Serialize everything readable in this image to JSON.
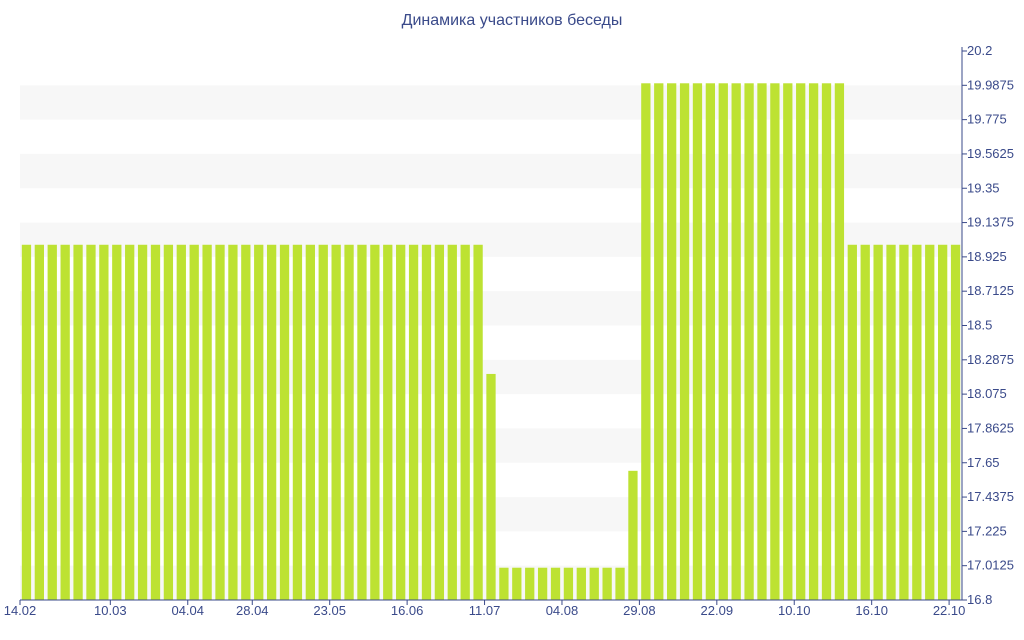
{
  "chart_data": {
    "type": "bar",
    "title": "Динамика участников беседы",
    "xlabel": "",
    "ylabel": "",
    "ylim": [
      16.8,
      20.2
    ],
    "y_ticks": [
      "20.2",
      "19.9875",
      "19.775",
      "19.5625",
      "19.35",
      "19.1375",
      "18.925",
      "18.7125",
      "18.5",
      "18.2875",
      "18.075",
      "17.8625",
      "17.65",
      "17.4375",
      "17.225",
      "17.0125",
      "16.8"
    ],
    "x_tick_labels": [
      {
        "index": 0,
        "label": "14.02"
      },
      {
        "index": 7,
        "label": "10.03"
      },
      {
        "index": 13,
        "label": "04.04"
      },
      {
        "index": 18,
        "label": "28.04"
      },
      {
        "index": 24,
        "label": "23.05"
      },
      {
        "index": 30,
        "label": "16.06"
      },
      {
        "index": 36,
        "label": "11.07"
      },
      {
        "index": 42,
        "label": "04.08"
      },
      {
        "index": 48,
        "label": "29.08"
      },
      {
        "index": 54,
        "label": "22.09"
      },
      {
        "index": 60,
        "label": "10.10"
      },
      {
        "index": 66,
        "label": "16.10"
      },
      {
        "index": 72,
        "label": "22.10"
      }
    ],
    "grid": "horizontal alternating bands",
    "bar_color": "#bde232",
    "band_color": "#f7f7f7",
    "axis_text_color": "#3a4a8a",
    "values": [
      19,
      19,
      19,
      19,
      19,
      19,
      19,
      19,
      19,
      19,
      19,
      19,
      19,
      19,
      19,
      19,
      19,
      19,
      19,
      19,
      19,
      19,
      19,
      19,
      19,
      19,
      19,
      19,
      19,
      19,
      19,
      19,
      19,
      19,
      19,
      19,
      18.2,
      17,
      17,
      17,
      17,
      17,
      17,
      17,
      17,
      17,
      17,
      17.6,
      20,
      20,
      20,
      20,
      20,
      20,
      20,
      20,
      20,
      20,
      20,
      20,
      20,
      20,
      20,
      20,
      19,
      19,
      19,
      19,
      19,
      19,
      19,
      19,
      19
    ]
  }
}
